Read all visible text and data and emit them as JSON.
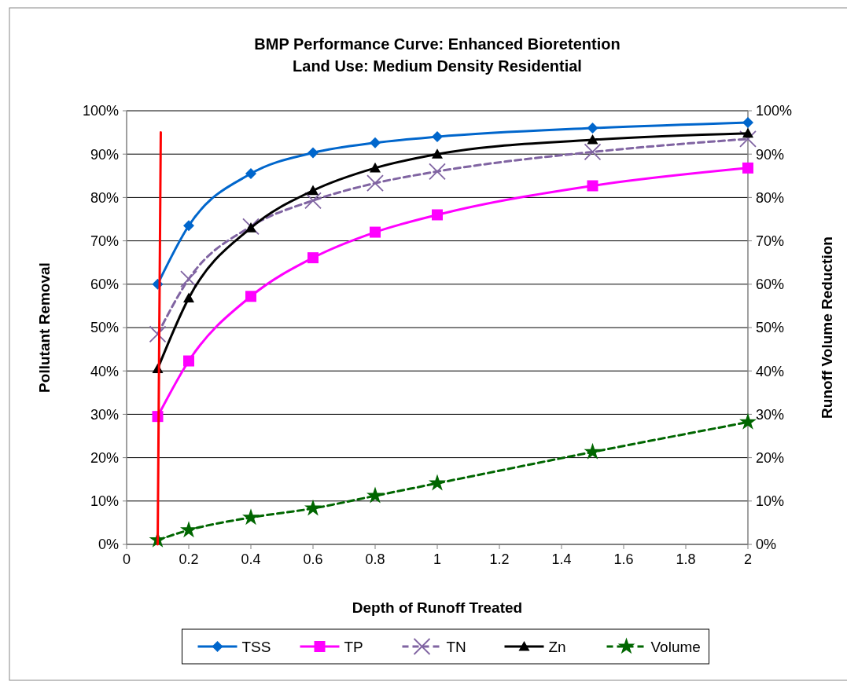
{
  "chart_data": {
    "type": "line",
    "title": "BMP Performance Curve: Enhanced Bioretention",
    "subtitle": "Land Use: Medium Density Residential",
    "xlabel": "Depth of Runoff Treated",
    "ylabel": "Pollutant Removal",
    "y2label": "Runoff Volume Reduction",
    "x": [
      0.1,
      0.2,
      0.4,
      0.6,
      0.8,
      1,
      1.5,
      2
    ],
    "series": [
      {
        "name": "TSS",
        "color": "#0066cc",
        "marker": "diamond",
        "line_style": "solid",
        "values": [
          60,
          73.5,
          85.5,
          90.3,
          92.6,
          94,
          96,
          97.3
        ]
      },
      {
        "name": "TP",
        "color": "#ff00ff",
        "marker": "square",
        "line_style": "solid",
        "values": [
          29.5,
          42.3,
          57.2,
          66.1,
          72,
          76,
          82.7,
          86.8
        ]
      },
      {
        "name": "TN",
        "color": "#8064a2",
        "marker": "cross",
        "line_style": "dashed",
        "values": [
          48.5,
          61.2,
          73.3,
          79.3,
          83.3,
          86,
          90.5,
          93.5
        ]
      },
      {
        "name": "Zn",
        "color": "#000000",
        "marker": "triangle",
        "line_style": "solid",
        "values": [
          40.5,
          56.8,
          73,
          81.6,
          86.8,
          90,
          93.3,
          94.8
        ]
      },
      {
        "name": "Volume",
        "color": "#006600",
        "marker": "star",
        "line_style": "dashed",
        "values": [
          1,
          3.3,
          6.2,
          8.3,
          11.2,
          14.1,
          21.3,
          28.2
        ]
      },
      {
        "color": "#ff0000",
        "marker": "none",
        "line_style": "solid",
        "x": [
          0.1,
          0.11
        ],
        "values": [
          0,
          95
        ]
      }
    ],
    "xlim": [
      0,
      2
    ],
    "xticks": [
      0,
      0.2,
      0.4,
      0.6,
      0.8,
      1,
      1.2,
      1.4,
      1.6,
      1.8,
      2
    ],
    "ylim": [
      0,
      100
    ],
    "yticks": [
      {
        "value": 0,
        "label": "0%"
      },
      {
        "value": 10,
        "label": "10%"
      },
      {
        "value": 20,
        "label": "20%"
      },
      {
        "value": 30,
        "label": "30%"
      },
      {
        "value": 40,
        "label": "40%"
      },
      {
        "value": 50,
        "label": "50%"
      },
      {
        "value": 60,
        "label": "60%"
      },
      {
        "value": 70,
        "label": "70%"
      },
      {
        "value": 80,
        "label": "80%"
      },
      {
        "value": 90,
        "label": "90%"
      },
      {
        "value": 100,
        "label": "100%"
      }
    ],
    "y2lim": [
      0,
      100
    ],
    "y2ticks": [
      {
        "value": 0,
        "label": "0%"
      },
      {
        "value": 10,
        "label": "10%"
      },
      {
        "value": 20,
        "label": "20%"
      },
      {
        "value": 30,
        "label": "30%"
      },
      {
        "value": 40,
        "label": "40%"
      },
      {
        "value": 50,
        "label": "50%"
      },
      {
        "value": 60,
        "label": "60%"
      },
      {
        "value": 70,
        "label": "70%"
      },
      {
        "value": 80,
        "label": "80%"
      },
      {
        "value": 90,
        "label": "90%"
      },
      {
        "value": 100,
        "label": "100%"
      }
    ],
    "grid": "y",
    "legend": "bottom"
  }
}
